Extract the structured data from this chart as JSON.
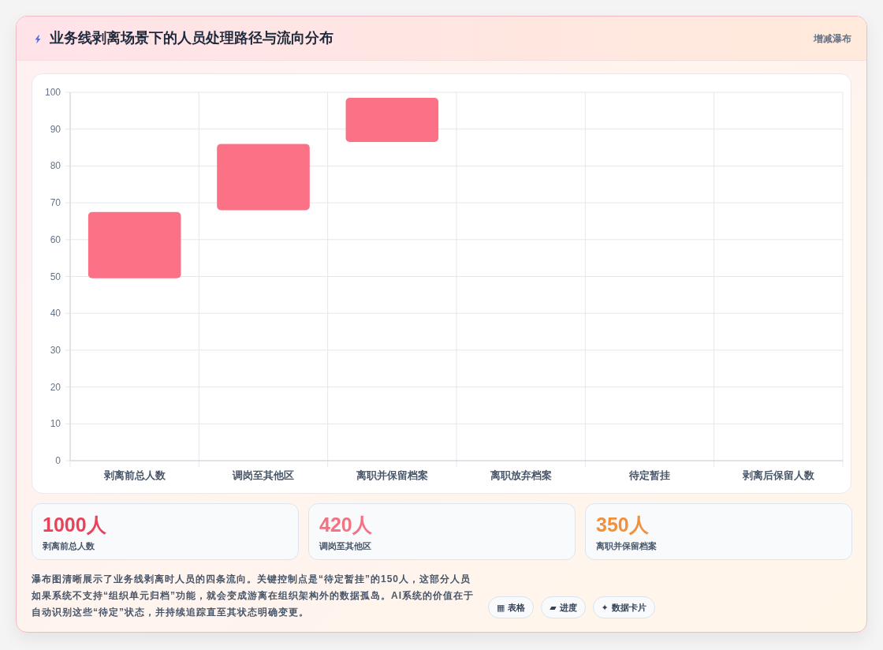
{
  "chart_data": [
    {
      "type": "bar",
      "title": "业务线剥离场景下的人员处理路径与流向分布",
      "subtitle": "增减瀑布",
      "categories": [
        "剥离前总人数",
        "调岗至其他区",
        "离职并保留档案",
        "离职放弃档案",
        "待定暂挂",
        "剥离后保留人数"
      ],
      "values": [
        18,
        18,
        12,
        null,
        null,
        null
      ],
      "base": [
        49.5,
        68,
        86.5,
        null,
        null,
        null
      ],
      "color": "#fb7185",
      "ylim": [
        0,
        100
      ],
      "yticks": [
        0,
        10,
        20,
        30,
        40,
        50,
        60,
        70,
        80,
        90,
        100
      ],
      "grid": true
    },
    {
      "type": "other",
      "title": "1000人",
      "subtitle": "剥离前总人数",
      "color": "#e9435c"
    },
    {
      "type": "other",
      "title": "420人",
      "subtitle": "调岗至其他区",
      "color": "#f27382"
    },
    {
      "type": "other",
      "title": "350人",
      "subtitle": "离职并保留档案",
      "color": "#f2913d"
    },
    {
      "type": "other",
      "annotations": [
        "瀑布图清晰展示了业务线剥离时人员的四条流向。关键控制点是“待定暂挂”的150人，这部分人员如果系统不支持“组织单元归档”功能，就会变成游离在组织架构外的数据孤岛。AI系统的价值在于自动识别这些“待定”状态，并持续追踪直至其状态明确变更。",
        "▦ 表格",
        "▰ 进度",
        "✦ 数据卡片"
      ]
    }
  ]
}
